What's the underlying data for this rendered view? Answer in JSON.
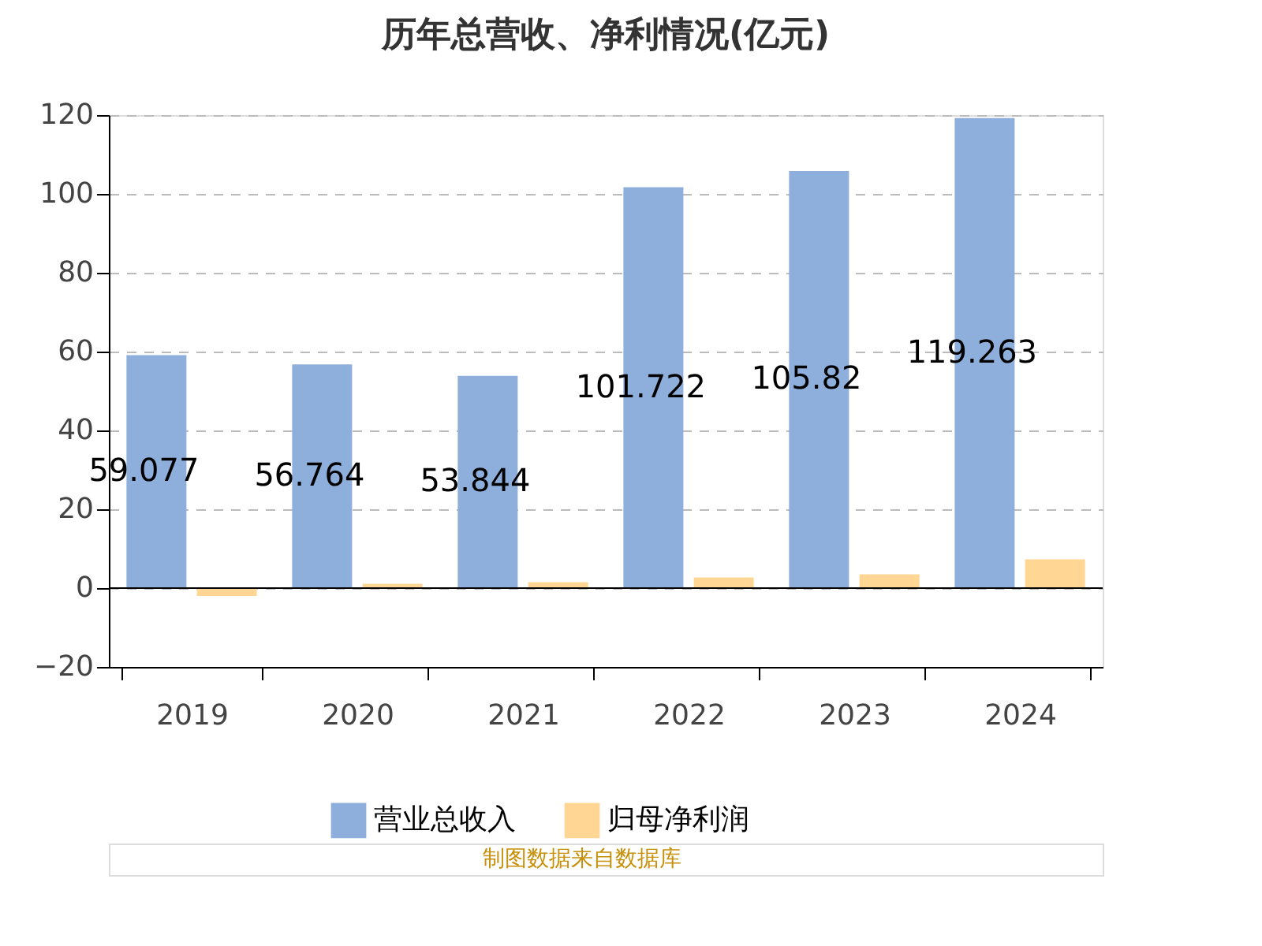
{
  "chart_data": {
    "type": "bar",
    "title": "历年总营收、净利情况(亿元)",
    "categories": [
      "2019",
      "2020",
      "2021",
      "2022",
      "2023",
      "2024"
    ],
    "series": [
      {
        "name": "营业总收入",
        "color": "#8eaedb",
        "values": [
          59.077,
          56.764,
          53.844,
          101.722,
          105.82,
          119.263
        ],
        "value_labels": [
          "59.077",
          "56.764",
          "53.844",
          "101.722",
          "105.82",
          "119.263"
        ]
      },
      {
        "name": "归母净利润",
        "color": "#ffd693",
        "values": [
          -2.0,
          1.1,
          1.5,
          2.7,
          3.5,
          7.3
        ]
      }
    ],
    "ylim": [
      -20,
      120
    ],
    "yticks": [
      -20,
      0,
      20,
      40,
      60,
      80,
      100,
      120
    ],
    "grid": "y",
    "legend": "bottom",
    "annotations": [
      "制图数据来自数据库"
    ]
  }
}
